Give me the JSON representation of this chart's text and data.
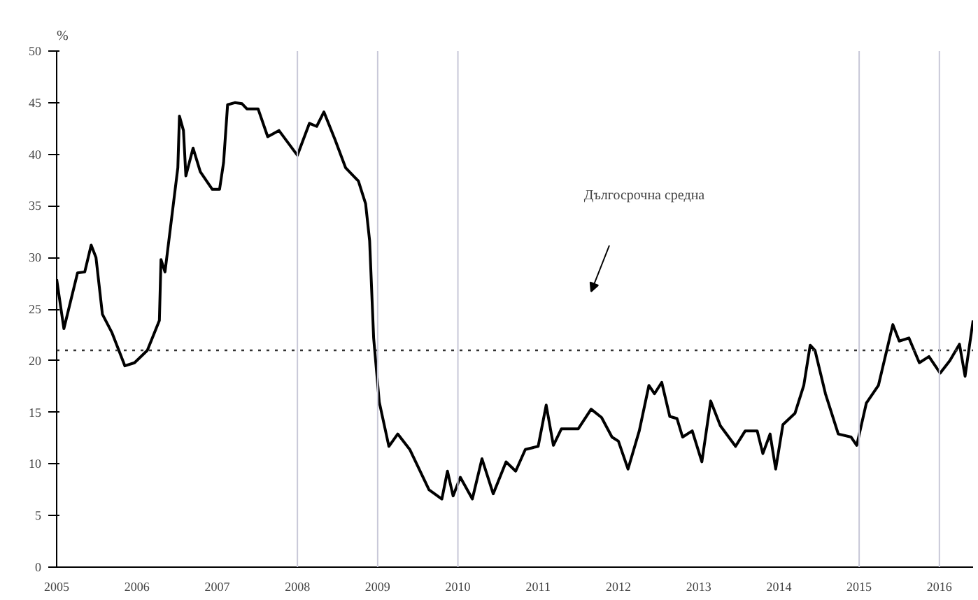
{
  "chart_data": {
    "type": "line",
    "ylabel": "%",
    "x": [
      2005.0,
      2005.09,
      2005.26,
      2005.35,
      2005.43,
      2005.49,
      2005.57,
      2005.69,
      2005.85,
      2005.97,
      2006.13,
      2006.28,
      2006.3,
      2006.35,
      2006.51,
      2006.53,
      2006.58,
      2006.61,
      2006.7,
      2006.79,
      2006.94,
      2007.03,
      2007.08,
      2007.13,
      2007.22,
      2007.31,
      2007.37,
      2007.51,
      2007.63,
      2007.77,
      2008.0,
      2008.15,
      2008.24,
      2008.33,
      2008.47,
      2008.6,
      2008.76,
      2008.85,
      2008.9,
      2008.95,
      2009.02,
      2009.14,
      2009.25,
      2009.4,
      2009.64,
      2009.8,
      2009.87,
      2009.94,
      2010.03,
      2010.18,
      2010.3,
      2010.44,
      2010.6,
      2010.72,
      2010.84,
      2011.0,
      2011.1,
      2011.19,
      2011.29,
      2011.5,
      2011.66,
      2011.79,
      2011.92,
      2012.0,
      2012.12,
      2012.26,
      2012.38,
      2012.45,
      2012.54,
      2012.64,
      2012.73,
      2012.8,
      2012.92,
      2013.04,
      2013.15,
      2013.27,
      2013.46,
      2013.58,
      2013.73,
      2013.8,
      2013.89,
      2013.96,
      2014.05,
      2014.2,
      2014.31,
      2014.39,
      2014.45,
      2014.58,
      2014.74,
      2014.9,
      2014.97,
      2015.09,
      2015.24,
      2015.42,
      2015.5,
      2015.62,
      2015.75,
      2015.87,
      2016.01,
      2016.13,
      2016.25,
      2016.32,
      2016.42
    ],
    "series": [
      {
        "color": "#000000",
        "values": [
          27.9,
          23.1,
          28.5,
          28.6,
          31.2,
          30.0,
          24.5,
          22.7,
          19.5,
          19.8,
          21.0,
          23.9,
          29.8,
          28.6,
          38.7,
          43.7,
          42.3,
          37.9,
          40.6,
          38.3,
          36.6,
          36.6,
          39.2,
          44.8,
          45.0,
          44.9,
          44.4,
          44.4,
          41.7,
          42.3,
          39.9,
          43.0,
          42.7,
          44.1,
          41.4,
          38.7,
          37.4,
          35.2,
          31.6,
          22.2,
          16.0,
          11.7,
          12.9,
          11.4,
          7.5,
          6.6,
          9.3,
          6.9,
          8.7,
          6.6,
          10.5,
          7.1,
          10.2,
          9.3,
          11.4,
          11.7,
          15.7,
          11.8,
          13.4,
          13.4,
          15.3,
          14.5,
          12.6,
          12.2,
          9.5,
          13.2,
          17.6,
          16.8,
          17.9,
          14.6,
          14.4,
          12.6,
          13.2,
          10.2,
          16.1,
          13.7,
          11.7,
          13.2,
          13.2,
          11.0,
          12.9,
          9.5,
          13.8,
          14.9,
          17.6,
          21.5,
          21.0,
          16.8,
          12.9,
          12.6,
          11.8,
          15.9,
          17.6,
          23.5,
          21.9,
          22.2,
          19.8,
          20.4,
          18.8,
          20.0,
          21.6,
          18.5,
          23.9
        ]
      }
    ],
    "xlim": [
      2005,
      2016.42
    ],
    "xticks": [
      2005,
      2006,
      2007,
      2008,
      2009,
      2010,
      2011,
      2012,
      2013,
      2014,
      2015,
      2016
    ],
    "ylim": [
      0,
      50
    ],
    "yticks": [
      0,
      5,
      10,
      15,
      20,
      25,
      30,
      35,
      40,
      45,
      50
    ],
    "ref_lines": [
      {
        "axis": "y",
        "value": 21,
        "line_style": "dotted",
        "color": "#333333"
      },
      {
        "axis": "x",
        "value": 2008,
        "color": "#c8c8d8"
      },
      {
        "axis": "x",
        "value": 2009,
        "color": "#c8c8d8"
      },
      {
        "axis": "x",
        "value": 2010,
        "color": "#c8c8d8"
      },
      {
        "axis": "x",
        "value": 2015,
        "color": "#c8c8d8"
      },
      {
        "axis": "x",
        "value": 2016,
        "color": "#c8c8d8"
      }
    ],
    "annotations": [
      "Дългосрочна средна"
    ],
    "grid": false,
    "marker": "none",
    "line_style": "solid"
  }
}
